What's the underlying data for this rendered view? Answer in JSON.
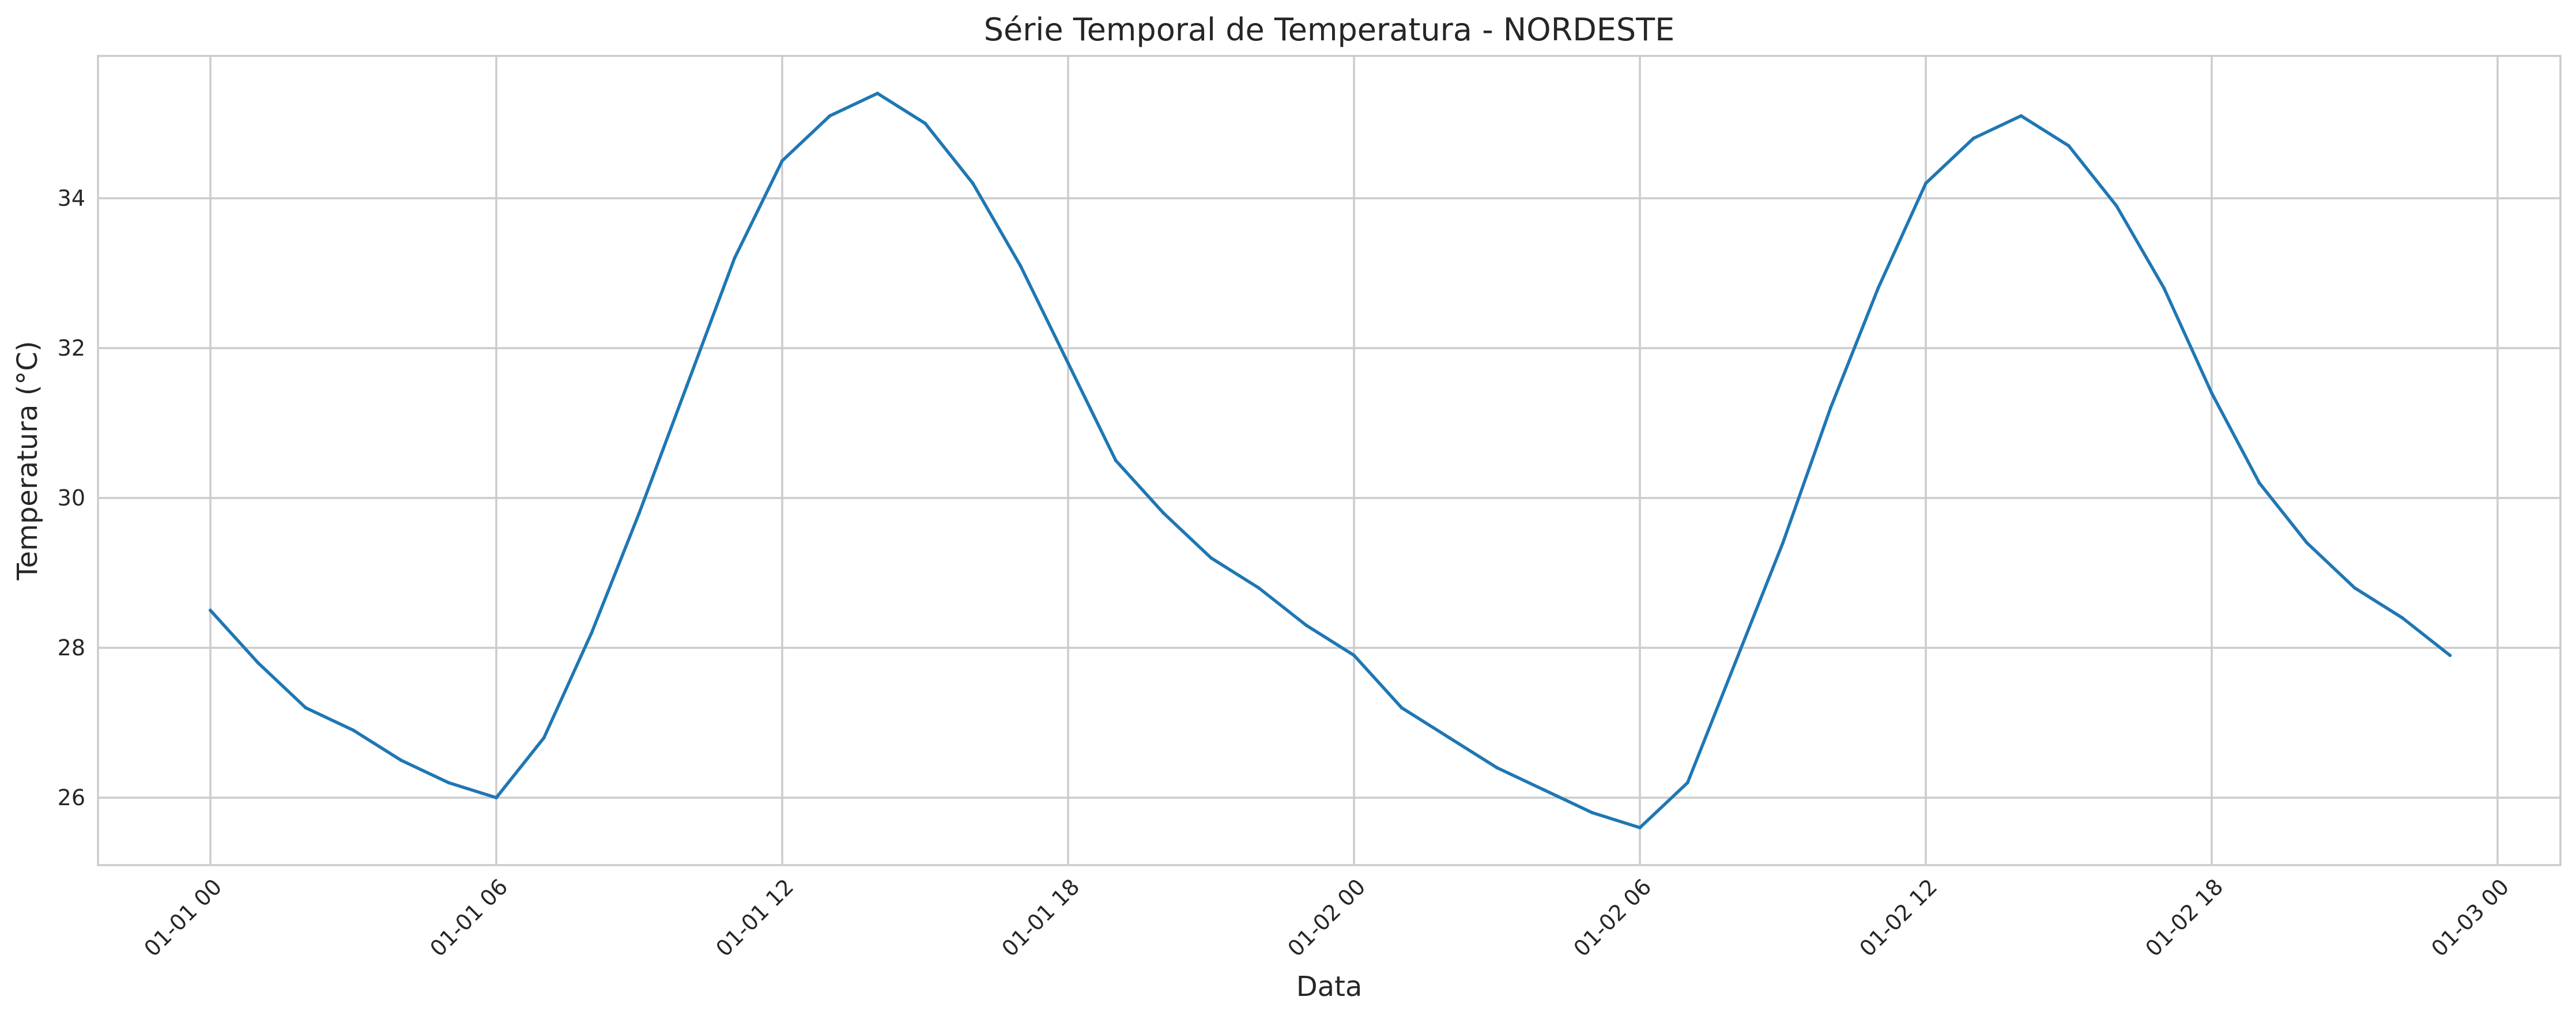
{
  "chart_data": {
    "type": "line",
    "title": "Série Temporal de Temperatura - NORDESTE",
    "xlabel": "Data",
    "ylabel": "Temperatura (°C)",
    "x_tick_labels": [
      "01-01 00",
      "01-01 06",
      "01-01 12",
      "01-01 18",
      "01-02 00",
      "01-02 06",
      "01-02 12",
      "01-02 18",
      "01-03 00"
    ],
    "y_ticks": [
      26,
      28,
      30,
      32,
      34
    ],
    "ylim": [
      25.1,
      35.9
    ],
    "grid": true,
    "series": [
      {
        "color": "#1f77b4",
        "x": [
          "01-01 00",
          "01-01 01",
          "01-01 02",
          "01-01 03",
          "01-01 04",
          "01-01 05",
          "01-01 06",
          "01-01 07",
          "01-01 08",
          "01-01 09",
          "01-01 10",
          "01-01 11",
          "01-01 12",
          "01-01 13",
          "01-01 14",
          "01-01 15",
          "01-01 16",
          "01-01 17",
          "01-01 18",
          "01-01 19",
          "01-01 20",
          "01-01 21",
          "01-01 22",
          "01-01 23",
          "01-02 00",
          "01-02 01",
          "01-02 02",
          "01-02 03",
          "01-02 04",
          "01-02 05",
          "01-02 06",
          "01-02 07",
          "01-02 08",
          "01-02 09",
          "01-02 10",
          "01-02 11",
          "01-02 12",
          "01-02 13",
          "01-02 14",
          "01-02 15",
          "01-02 16",
          "01-02 17",
          "01-02 18",
          "01-02 19",
          "01-02 20",
          "01-02 21",
          "01-02 22",
          "01-02 23"
        ],
        "values": [
          28.5,
          27.8,
          27.2,
          26.9,
          26.5,
          26.2,
          26.0,
          26.8,
          28.2,
          29.8,
          31.5,
          33.2,
          34.5,
          35.1,
          35.4,
          35.0,
          34.2,
          33.1,
          31.8,
          30.5,
          29.8,
          29.2,
          28.8,
          28.3,
          27.9,
          27.2,
          26.8,
          26.4,
          26.1,
          25.8,
          25.6,
          26.2,
          27.8,
          29.4,
          31.2,
          32.8,
          34.2,
          34.8,
          35.1,
          34.7,
          33.9,
          32.8,
          31.4,
          30.2,
          29.4,
          28.8,
          28.4,
          27.9
        ]
      }
    ]
  }
}
